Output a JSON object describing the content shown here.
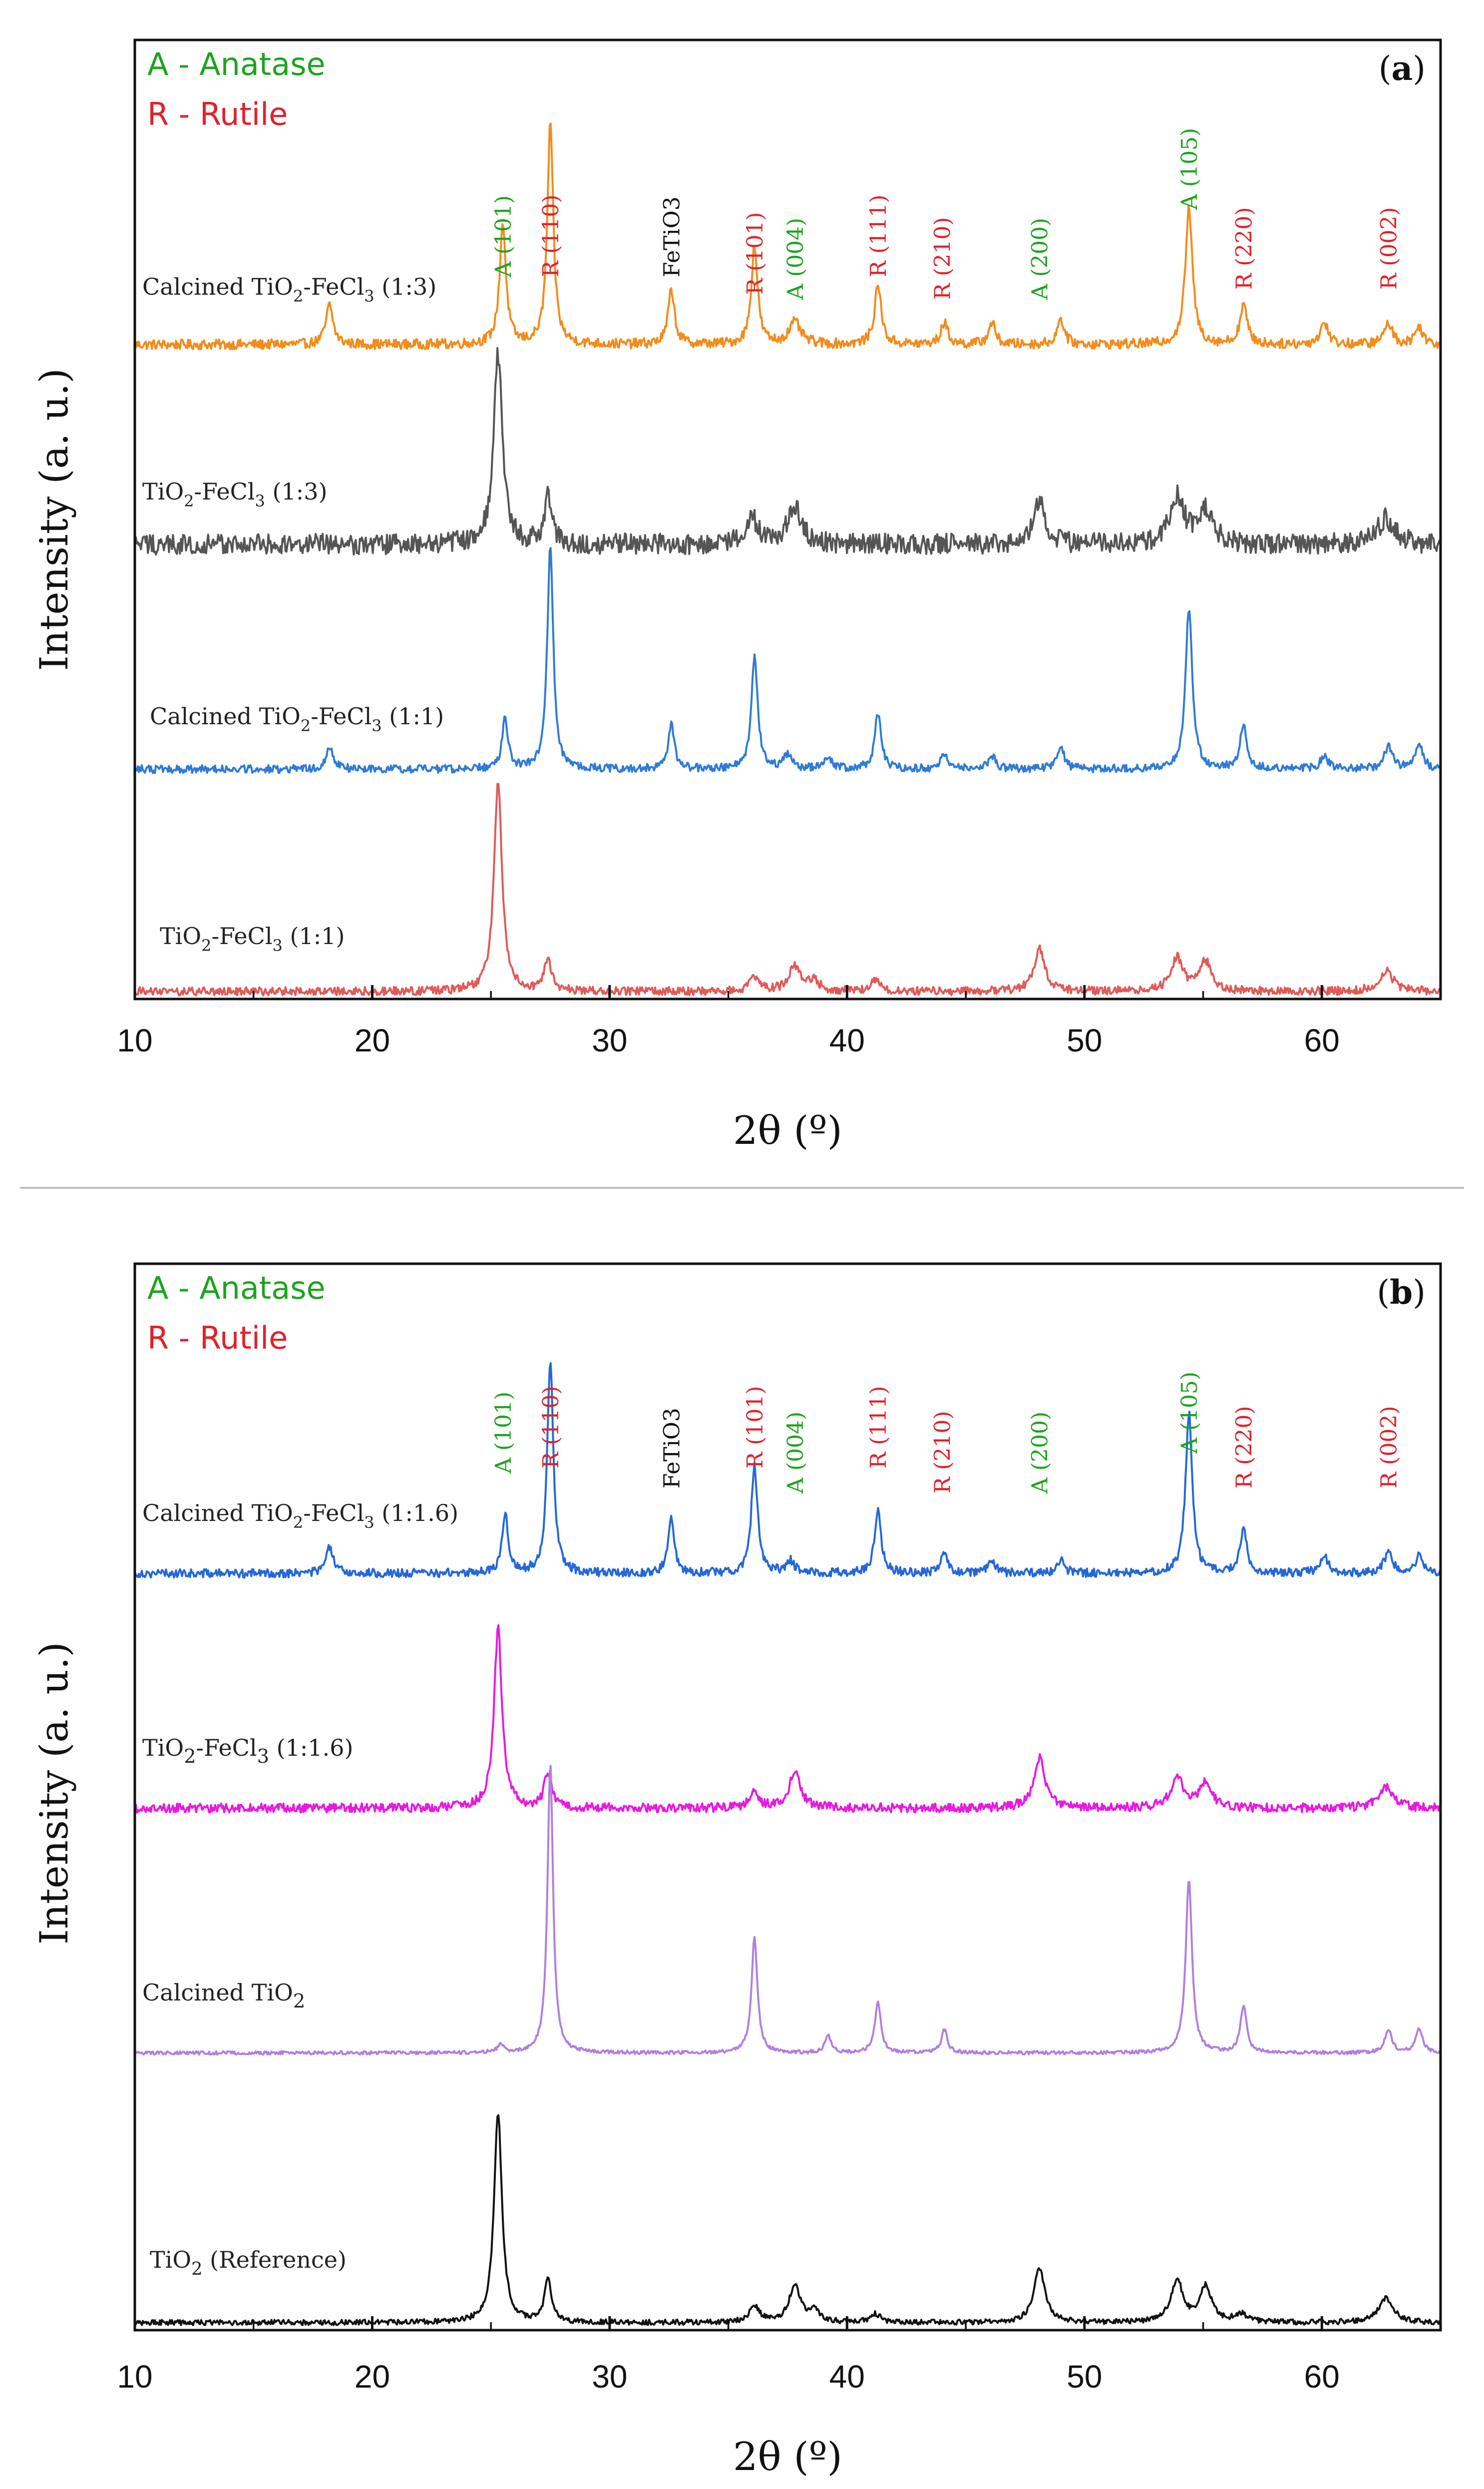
{
  "colors": {
    "anatase": "#1ea31e",
    "rutile": "#e0222a",
    "black": "#111111"
  },
  "chart_data": [
    {
      "type": "line",
      "panel_tag": "a",
      "xlabel": "2θ (º)",
      "ylabel": "Intensity (a. u.)",
      "xlim": [
        10,
        65
      ],
      "xticks": [
        "10",
        "20",
        "30",
        "40",
        "50",
        "60"
      ],
      "legend": [
        {
          "text": "A - Anatase",
          "color": "#1ea31e"
        },
        {
          "text": "R - Rutile",
          "color": "#e0222a"
        }
      ],
      "series": [
        {
          "name": "Calcined TiO2-FeCl3 (1:3)",
          "label_parts": [
            "Calcined TiO",
            "2",
            "-FeCl",
            "3",
            " (1:3)"
          ],
          "color": "#f28c1c",
          "noise": 0.045,
          "peaks": [
            {
              "x": 18.2,
              "h": 0.18,
              "w": 0.18
            },
            {
              "x": 25.5,
              "h": 0.55,
              "w": 0.16
            },
            {
              "x": 27.5,
              "h": 1.0,
              "w": 0.15
            },
            {
              "x": 32.6,
              "h": 0.25,
              "w": 0.16
            },
            {
              "x": 36.1,
              "h": 0.45,
              "w": 0.16
            },
            {
              "x": 37.8,
              "h": 0.1,
              "w": 0.3
            },
            {
              "x": 41.3,
              "h": 0.27,
              "w": 0.17
            },
            {
              "x": 44.1,
              "h": 0.1,
              "w": 0.17
            },
            {
              "x": 46.1,
              "h": 0.1,
              "w": 0.17
            },
            {
              "x": 49.0,
              "h": 0.12,
              "w": 0.17
            },
            {
              "x": 54.4,
              "h": 0.62,
              "w": 0.18
            },
            {
              "x": 56.7,
              "h": 0.18,
              "w": 0.18
            },
            {
              "x": 60.1,
              "h": 0.1,
              "w": 0.2
            },
            {
              "x": 62.8,
              "h": 0.1,
              "w": 0.2
            },
            {
              "x": 64.1,
              "h": 0.08,
              "w": 0.2
            }
          ]
        },
        {
          "name": "TiO2-FeCl3 (1:3)",
          "label_parts": [
            "TiO",
            "2",
            "-FeCl",
            "3",
            " (1:3)"
          ],
          "color": "#555555",
          "noise": 0.11,
          "peaks": [
            {
              "x": 25.3,
              "h": 1.0,
              "w": 0.22
            },
            {
              "x": 27.4,
              "h": 0.25,
              "w": 0.18
            },
            {
              "x": 36.0,
              "h": 0.14,
              "w": 0.3
            },
            {
              "x": 37.8,
              "h": 0.2,
              "w": 0.35
            },
            {
              "x": 48.1,
              "h": 0.22,
              "w": 0.3
            },
            {
              "x": 53.9,
              "h": 0.25,
              "w": 0.35
            },
            {
              "x": 55.1,
              "h": 0.18,
              "w": 0.35
            },
            {
              "x": 62.7,
              "h": 0.14,
              "w": 0.4
            }
          ]
        },
        {
          "name": "Calcined TiO2-FeCl3 (1:1)",
          "label_parts": [
            "Calcined TiO",
            "2",
            "-FeCl",
            "3",
            " (1:1)"
          ],
          "color": "#2f7bd6",
          "noise": 0.035,
          "peaks": [
            {
              "x": 18.2,
              "h": 0.1,
              "w": 0.18
            },
            {
              "x": 25.6,
              "h": 0.22,
              "w": 0.15
            },
            {
              "x": 27.5,
              "h": 1.0,
              "w": 0.15
            },
            {
              "x": 32.6,
              "h": 0.2,
              "w": 0.15
            },
            {
              "x": 36.1,
              "h": 0.5,
              "w": 0.16
            },
            {
              "x": 37.5,
              "h": 0.06,
              "w": 0.2
            },
            {
              "x": 39.2,
              "h": 0.05,
              "w": 0.2
            },
            {
              "x": 41.3,
              "h": 0.25,
              "w": 0.16
            },
            {
              "x": 44.1,
              "h": 0.07,
              "w": 0.17
            },
            {
              "x": 46.1,
              "h": 0.06,
              "w": 0.17
            },
            {
              "x": 49.0,
              "h": 0.1,
              "w": 0.17
            },
            {
              "x": 54.4,
              "h": 0.72,
              "w": 0.17
            },
            {
              "x": 56.7,
              "h": 0.2,
              "w": 0.17
            },
            {
              "x": 60.1,
              "h": 0.06,
              "w": 0.2
            },
            {
              "x": 62.8,
              "h": 0.1,
              "w": 0.2
            },
            {
              "x": 64.1,
              "h": 0.1,
              "w": 0.2
            }
          ]
        },
        {
          "name": "TiO2-FeCl3 (1:1)",
          "label_parts": [
            "TiO",
            "2",
            "-FeCl",
            "3",
            " (1:1)"
          ],
          "color": "#e05a5a",
          "noise": 0.04,
          "peaks": [
            {
              "x": 25.3,
              "h": 1.0,
              "w": 0.2
            },
            {
              "x": 27.4,
              "h": 0.15,
              "w": 0.18
            },
            {
              "x": 36.1,
              "h": 0.06,
              "w": 0.25
            },
            {
              "x": 37.8,
              "h": 0.12,
              "w": 0.3
            },
            {
              "x": 38.6,
              "h": 0.05,
              "w": 0.25
            },
            {
              "x": 41.2,
              "h": 0.05,
              "w": 0.25
            },
            {
              "x": 48.1,
              "h": 0.2,
              "w": 0.28
            },
            {
              "x": 53.9,
              "h": 0.16,
              "w": 0.3
            },
            {
              "x": 55.1,
              "h": 0.14,
              "w": 0.3
            },
            {
              "x": 62.7,
              "h": 0.1,
              "w": 0.35
            }
          ]
        }
      ],
      "peak_labels": [
        {
          "text": "A (101)",
          "x": 25.5,
          "color": "anatase"
        },
        {
          "text": "R (110)",
          "x": 27.5,
          "color": "rutile"
        },
        {
          "text": "FeTiO3",
          "x": 32.6,
          "color": "black",
          "horizontal": true
        },
        {
          "text": "R (101)",
          "x": 36.1,
          "color": "rutile"
        },
        {
          "text": "A (004)",
          "x": 37.8,
          "color": "anatase"
        },
        {
          "text": "R (111)",
          "x": 41.3,
          "color": "rutile"
        },
        {
          "text": "R (210)",
          "x": 44.0,
          "color": "rutile"
        },
        {
          "text": "A (200)",
          "x": 48.1,
          "color": "anatase"
        },
        {
          "text": "A (105)",
          "x": 54.4,
          "color": "anatase"
        },
        {
          "text": "R (220)",
          "x": 56.7,
          "color": "rutile"
        },
        {
          "text": "R (002)",
          "x": 62.8,
          "color": "rutile"
        }
      ]
    },
    {
      "type": "line",
      "panel_tag": "b",
      "xlabel": "2θ (º)",
      "ylabel": "Intensity (a. u.)",
      "xlim": [
        10,
        65
      ],
      "xticks": [
        "10",
        "20",
        "30",
        "40",
        "50",
        "60"
      ],
      "legend": [
        {
          "text": "A - Anatase",
          "color": "#1ea31e"
        },
        {
          "text": "R - Rutile",
          "color": "#e0222a"
        }
      ],
      "series": [
        {
          "name": "Calcined TiO2-FeCl3 (1:1.6)",
          "label_parts": [
            "Calcined TiO",
            "2",
            "-FeCl",
            "3",
            " (1:1.6)"
          ],
          "color": "#2468d8",
          "noise": 0.04,
          "peaks": [
            {
              "x": 18.2,
              "h": 0.12,
              "w": 0.18
            },
            {
              "x": 25.6,
              "h": 0.28,
              "w": 0.15
            },
            {
              "x": 27.5,
              "h": 1.0,
              "w": 0.15
            },
            {
              "x": 32.6,
              "h": 0.26,
              "w": 0.15
            },
            {
              "x": 36.1,
              "h": 0.5,
              "w": 0.16
            },
            {
              "x": 37.6,
              "h": 0.06,
              "w": 0.2
            },
            {
              "x": 41.3,
              "h": 0.3,
              "w": 0.16
            },
            {
              "x": 44.1,
              "h": 0.1,
              "w": 0.17
            },
            {
              "x": 46.1,
              "h": 0.06,
              "w": 0.17
            },
            {
              "x": 49.0,
              "h": 0.06,
              "w": 0.17
            },
            {
              "x": 54.4,
              "h": 0.75,
              "w": 0.17
            },
            {
              "x": 56.7,
              "h": 0.2,
              "w": 0.17
            },
            {
              "x": 60.1,
              "h": 0.08,
              "w": 0.2
            },
            {
              "x": 62.8,
              "h": 0.1,
              "w": 0.2
            },
            {
              "x": 64.1,
              "h": 0.08,
              "w": 0.2
            }
          ]
        },
        {
          "name": "TiO2-FeCl3 (1:1.6)",
          "label_parts": [
            "TiO",
            "2",
            "-FeCl",
            "3",
            " (1:1.6)"
          ],
          "color": "#e81ae0",
          "noise": 0.05,
          "peaks": [
            {
              "x": 25.3,
              "h": 1.0,
              "w": 0.2
            },
            {
              "x": 27.4,
              "h": 0.2,
              "w": 0.18
            },
            {
              "x": 36.1,
              "h": 0.08,
              "w": 0.25
            },
            {
              "x": 37.8,
              "h": 0.2,
              "w": 0.28
            },
            {
              "x": 48.1,
              "h": 0.28,
              "w": 0.28
            },
            {
              "x": 53.9,
              "h": 0.18,
              "w": 0.3
            },
            {
              "x": 55.1,
              "h": 0.14,
              "w": 0.3
            },
            {
              "x": 62.7,
              "h": 0.12,
              "w": 0.35
            }
          ]
        },
        {
          "name": "Calcined TiO2",
          "label_parts": [
            "Calcined  TiO",
            "2",
            "",
            "",
            ""
          ],
          "color": "#b07fe0",
          "noise": 0.012,
          "peaks": [
            {
              "x": 25.4,
              "h": 0.03,
              "w": 0.15
            },
            {
              "x": 27.5,
              "h": 1.0,
              "w": 0.14
            },
            {
              "x": 36.1,
              "h": 0.4,
              "w": 0.15
            },
            {
              "x": 39.2,
              "h": 0.06,
              "w": 0.15
            },
            {
              "x": 41.3,
              "h": 0.18,
              "w": 0.15
            },
            {
              "x": 44.1,
              "h": 0.08,
              "w": 0.15
            },
            {
              "x": 54.4,
              "h": 0.6,
              "w": 0.16
            },
            {
              "x": 56.7,
              "h": 0.16,
              "w": 0.16
            },
            {
              "x": 62.8,
              "h": 0.08,
              "w": 0.18
            },
            {
              "x": 64.1,
              "h": 0.08,
              "w": 0.18
            }
          ]
        },
        {
          "name": "TiO2 (Reference)",
          "label_parts": [
            "TiO",
            "2",
            " (Reference)",
            "",
            ""
          ],
          "color": "#111111",
          "noise": 0.025,
          "peaks": [
            {
              "x": 25.3,
              "h": 1.0,
              "w": 0.2
            },
            {
              "x": 27.4,
              "h": 0.2,
              "w": 0.18
            },
            {
              "x": 36.1,
              "h": 0.08,
              "w": 0.25
            },
            {
              "x": 37.8,
              "h": 0.18,
              "w": 0.28
            },
            {
              "x": 38.6,
              "h": 0.06,
              "w": 0.25
            },
            {
              "x": 41.2,
              "h": 0.04,
              "w": 0.25
            },
            {
              "x": 48.1,
              "h": 0.26,
              "w": 0.28
            },
            {
              "x": 53.9,
              "h": 0.2,
              "w": 0.3
            },
            {
              "x": 55.1,
              "h": 0.17,
              "w": 0.3
            },
            {
              "x": 56.6,
              "h": 0.04,
              "w": 0.3
            },
            {
              "x": 62.7,
              "h": 0.12,
              "w": 0.35
            }
          ]
        }
      ],
      "peak_labels": [
        {
          "text": "A (101)",
          "x": 25.5,
          "color": "anatase"
        },
        {
          "text": "R (110)",
          "x": 27.5,
          "color": "rutile"
        },
        {
          "text": "FeTiO3",
          "x": 32.6,
          "color": "black",
          "horizontal": true
        },
        {
          "text": "R (101)",
          "x": 36.1,
          "color": "rutile"
        },
        {
          "text": "A (004)",
          "x": 37.8,
          "color": "anatase"
        },
        {
          "text": "R (111)",
          "x": 41.3,
          "color": "rutile"
        },
        {
          "text": "R (210)",
          "x": 44.0,
          "color": "rutile"
        },
        {
          "text": "A (200)",
          "x": 48.1,
          "color": "anatase"
        },
        {
          "text": "A (105)",
          "x": 54.4,
          "color": "anatase"
        },
        {
          "text": "R (220)",
          "x": 56.7,
          "color": "rutile"
        },
        {
          "text": "R (002)",
          "x": 62.8,
          "color": "rutile"
        }
      ]
    }
  ]
}
